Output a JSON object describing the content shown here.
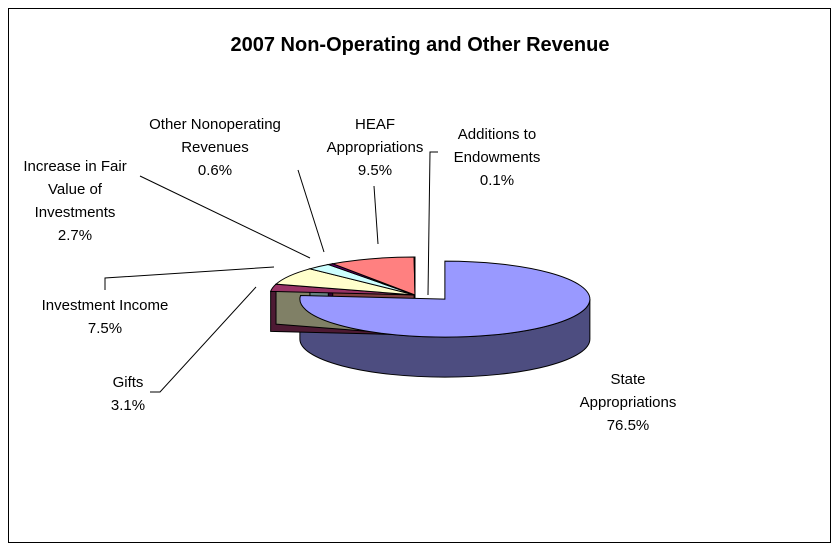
{
  "chart_data": {
    "type": "pie",
    "title": "2007 Non-Operating and Other Revenue",
    "categories": [
      "State Appropriations",
      "Gifts",
      "Investment Income",
      "Increase in Fair Value of Investments",
      "Other Nonoperating Revenues",
      "HEAF Appropriations",
      "Additions to Endowments"
    ],
    "values": [
      76.5,
      3.1,
      7.5,
      2.7,
      0.6,
      9.5,
      0.1
    ],
    "value_labels": [
      "76.5%",
      "3.1%",
      "7.5%",
      "2.7%",
      "0.6%",
      "9.5%",
      "0.1%"
    ],
    "colors": [
      "#9999ff",
      "#993366",
      "#ffffcc",
      "#ccffff",
      "#660066",
      "#ff8080",
      "#0066cc"
    ]
  }
}
